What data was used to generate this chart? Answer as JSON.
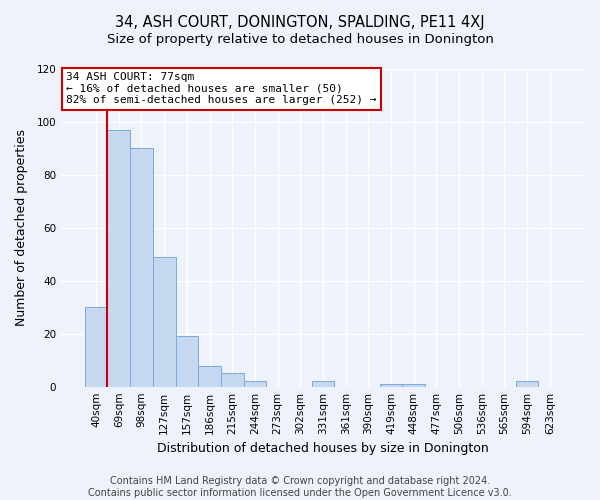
{
  "title": "34, ASH COURT, DONINGTON, SPALDING, PE11 4XJ",
  "subtitle": "Size of property relative to detached houses in Donington",
  "xlabel": "Distribution of detached houses by size in Donington",
  "ylabel": "Number of detached properties",
  "bin_labels": [
    "40sqm",
    "69sqm",
    "98sqm",
    "127sqm",
    "157sqm",
    "186sqm",
    "215sqm",
    "244sqm",
    "273sqm",
    "302sqm",
    "331sqm",
    "361sqm",
    "390sqm",
    "419sqm",
    "448sqm",
    "477sqm",
    "506sqm",
    "536sqm",
    "565sqm",
    "594sqm",
    "623sqm"
  ],
  "bar_heights": [
    30,
    97,
    90,
    49,
    19,
    8,
    5,
    2,
    0,
    0,
    2,
    0,
    0,
    1,
    1,
    0,
    0,
    0,
    0,
    2,
    0
  ],
  "bar_color": "#c5d8f0",
  "bar_edgecolor": "#7aaadc",
  "vline_x_idx": 1,
  "vline_color": "#cc0000",
  "annotation_title": "34 ASH COURT: 77sqm",
  "annotation_line1": "← 16% of detached houses are smaller (50)",
  "annotation_line2": "82% of semi-detached houses are larger (252) →",
  "annotation_box_edgecolor": "#cc0000",
  "ylim": [
    0,
    120
  ],
  "yticks": [
    0,
    20,
    40,
    60,
    80,
    100,
    120
  ],
  "footer1": "Contains HM Land Registry data © Crown copyright and database right 2024.",
  "footer2": "Contains public sector information licensed under the Open Government Licence v3.0.",
  "bg_color": "#eef2fa",
  "plot_bg_color": "#eef2fa",
  "grid_color": "#ffffff",
  "title_fontsize": 10.5,
  "subtitle_fontsize": 9.5,
  "axis_label_fontsize": 9,
  "tick_fontsize": 7.5,
  "annot_fontsize": 8,
  "footer_fontsize": 7
}
